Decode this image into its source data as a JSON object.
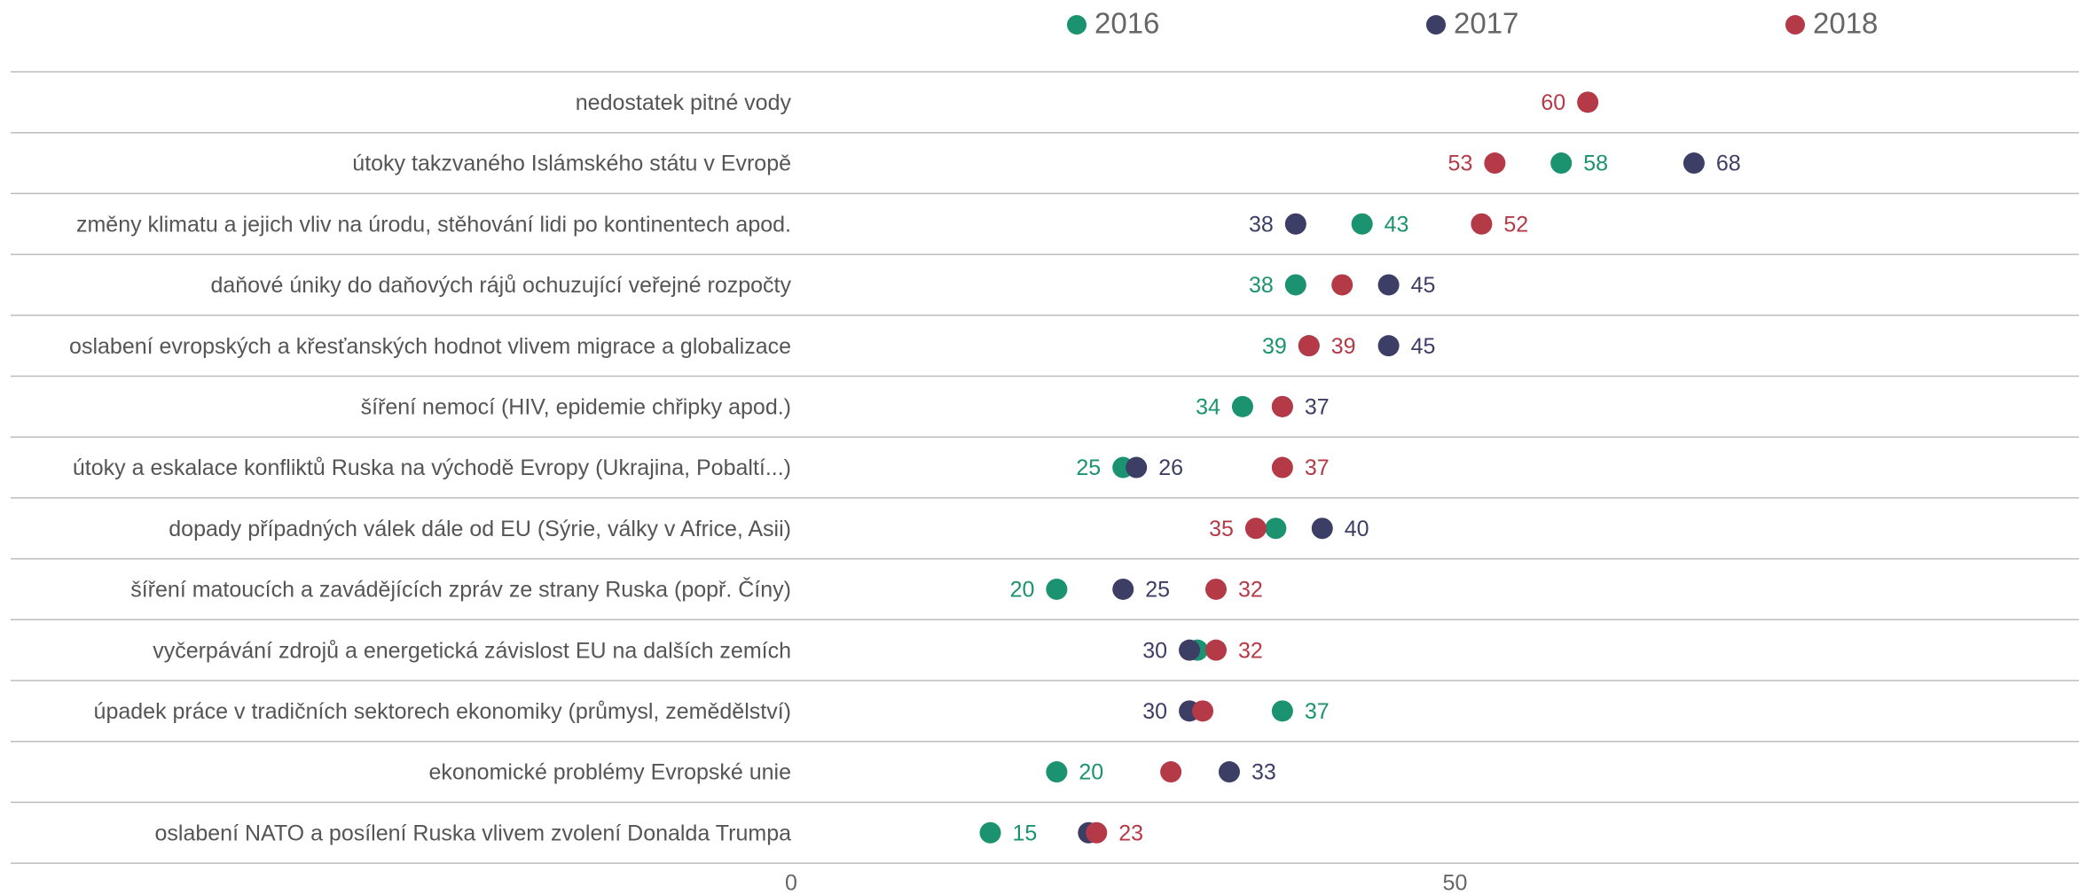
{
  "chart_data": {
    "type": "dot",
    "categories": [
      "nedostatek pitné vody",
      "útoky takzvaného Islámského státu v Evropě",
      "změny klimatu a jejich vliv na úrodu, stěhování lidi po kontinentech apod.",
      "daňové úniky do daňových rájů ochuzující veřejné rozpočty",
      "oslabení evropských a křesťanských hodnot vlivem migrace a globalizace",
      "šíření nemocí (HIV, epidemie chřipky apod.)",
      "útoky a eskalace konfliktů Ruska na východě Evropy (Ukrajina, Pobaltí...)",
      "dopady případných válek dále od EU (Sýrie, války v Africe, Asii)",
      "šíření matoucích a zavádějících zpráv ze strany Ruska (popř. Číny)",
      "vyčerpávání zdrojů a energetická závislost EU na dalších zemích",
      "úpadek práce v tradičních sektorech ekonomiky (průmysl, zemědělství)",
      "ekonomické problémy Evropské unie",
      "oslabení NATO a posílení Ruska vlivem zvolení Donalda Trumpa"
    ],
    "series": [
      {
        "name": "2016",
        "color": "#1b9270",
        "values": [
          null,
          58,
          43,
          38,
          39,
          34,
          25,
          36.5,
          20,
          30.6,
          37,
          20,
          15
        ],
        "value_labels": [
          null,
          "58",
          "43",
          "38",
          "39",
          "34",
          "25",
          null,
          "20",
          null,
          "37",
          "20",
          "15"
        ]
      },
      {
        "name": "2017",
        "color": "#3d3e66",
        "values": [
          null,
          68,
          38,
          45,
          45,
          37,
          26,
          40,
          25,
          30,
          30,
          33,
          22.4
        ],
        "value_labels": [
          null,
          "68",
          "38",
          "45",
          "45",
          "37",
          "26",
          "40",
          "25",
          "30",
          "30",
          "33",
          null
        ]
      },
      {
        "name": "2018",
        "color": "#b43a48",
        "values": [
          60,
          53,
          52,
          41.5,
          39,
          37,
          37,
          35,
          32,
          32,
          31,
          28.6,
          23
        ],
        "value_labels": [
          "60",
          "53",
          "52",
          null,
          "39",
          null,
          "37",
          "35",
          "32",
          "32",
          null,
          null,
          "23"
        ]
      }
    ],
    "xlim": [
      0,
      97
    ],
    "xticks": [
      0,
      50
    ]
  }
}
